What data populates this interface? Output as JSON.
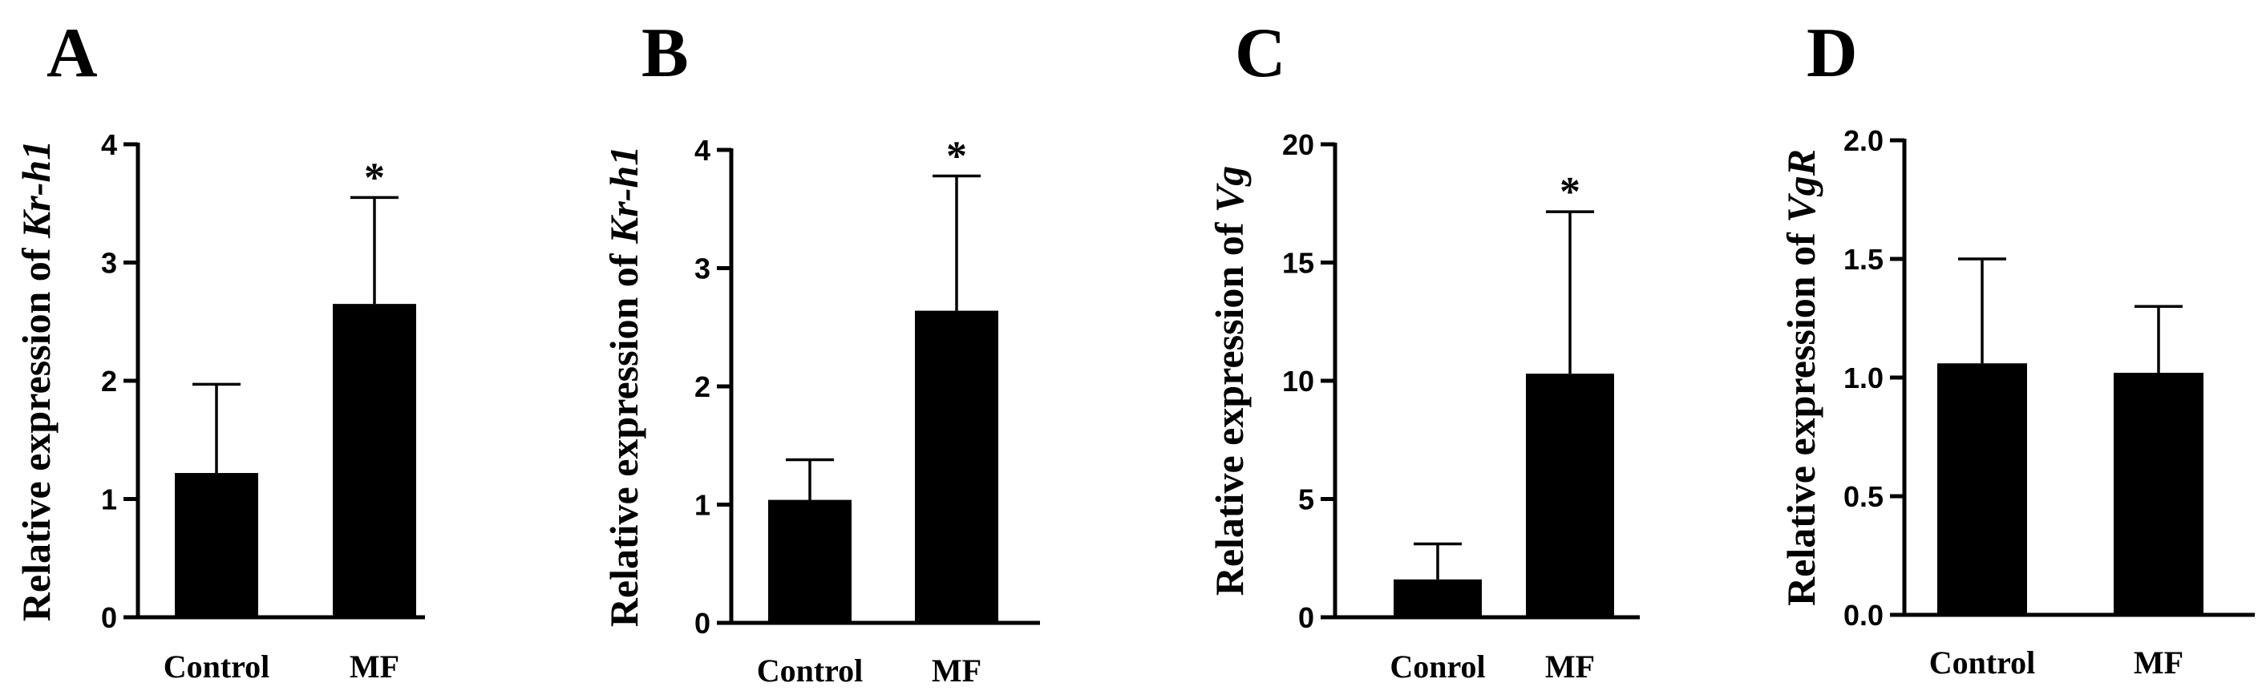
{
  "chart_data": [
    {
      "panel": "A",
      "type": "bar",
      "ylabel_prefix": "Relative expression of ",
      "ylabel_gene": "Kr-h1",
      "categories": [
        "Control",
        "MF"
      ],
      "values": [
        1.22,
        2.65
      ],
      "errors": [
        0.75,
        0.9
      ],
      "significance": [
        "",
        "*"
      ],
      "ylim": [
        0,
        4
      ],
      "yticks": [
        "0",
        "1",
        "2",
        "3",
        "4"
      ],
      "tick_values": [
        0,
        1,
        2,
        3,
        4
      ]
    },
    {
      "panel": "B",
      "type": "bar",
      "ylabel_prefix": "Relative expression of ",
      "ylabel_gene": "Kr-h1",
      "categories": [
        "Control",
        "MF"
      ],
      "values": [
        1.04,
        2.64
      ],
      "errors": [
        0.34,
        1.14
      ],
      "significance": [
        "",
        "*"
      ],
      "ylim": [
        0,
        4
      ],
      "yticks": [
        "0",
        "1",
        "2",
        "3",
        "4"
      ],
      "tick_values": [
        0,
        1,
        2,
        3,
        4
      ]
    },
    {
      "panel": "C",
      "type": "bar",
      "ylabel_prefix": "Relative expression of ",
      "ylabel_gene": "Vg",
      "categories": [
        "Conrol",
        "MF"
      ],
      "values": [
        1.6,
        10.3
      ],
      "errors": [
        1.5,
        6.85
      ],
      "significance": [
        "",
        "*"
      ],
      "ylim": [
        0,
        20
      ],
      "yticks": [
        "0",
        "5",
        "10",
        "15",
        "20"
      ],
      "tick_values": [
        0,
        5,
        10,
        15,
        20
      ]
    },
    {
      "panel": "D",
      "type": "bar",
      "ylabel_prefix": "Relative expression of ",
      "ylabel_gene": "VgR",
      "categories": [
        "Control",
        "MF"
      ],
      "values": [
        1.06,
        1.02
      ],
      "errors": [
        0.44,
        0.28
      ],
      "significance": [
        "",
        ""
      ],
      "ylim": [
        0,
        2
      ],
      "yticks": [
        "0.0",
        "0.5",
        "1.0",
        "1.5",
        "2.0"
      ],
      "tick_values": [
        0,
        0.5,
        1.0,
        1.5,
        2.0
      ]
    }
  ]
}
